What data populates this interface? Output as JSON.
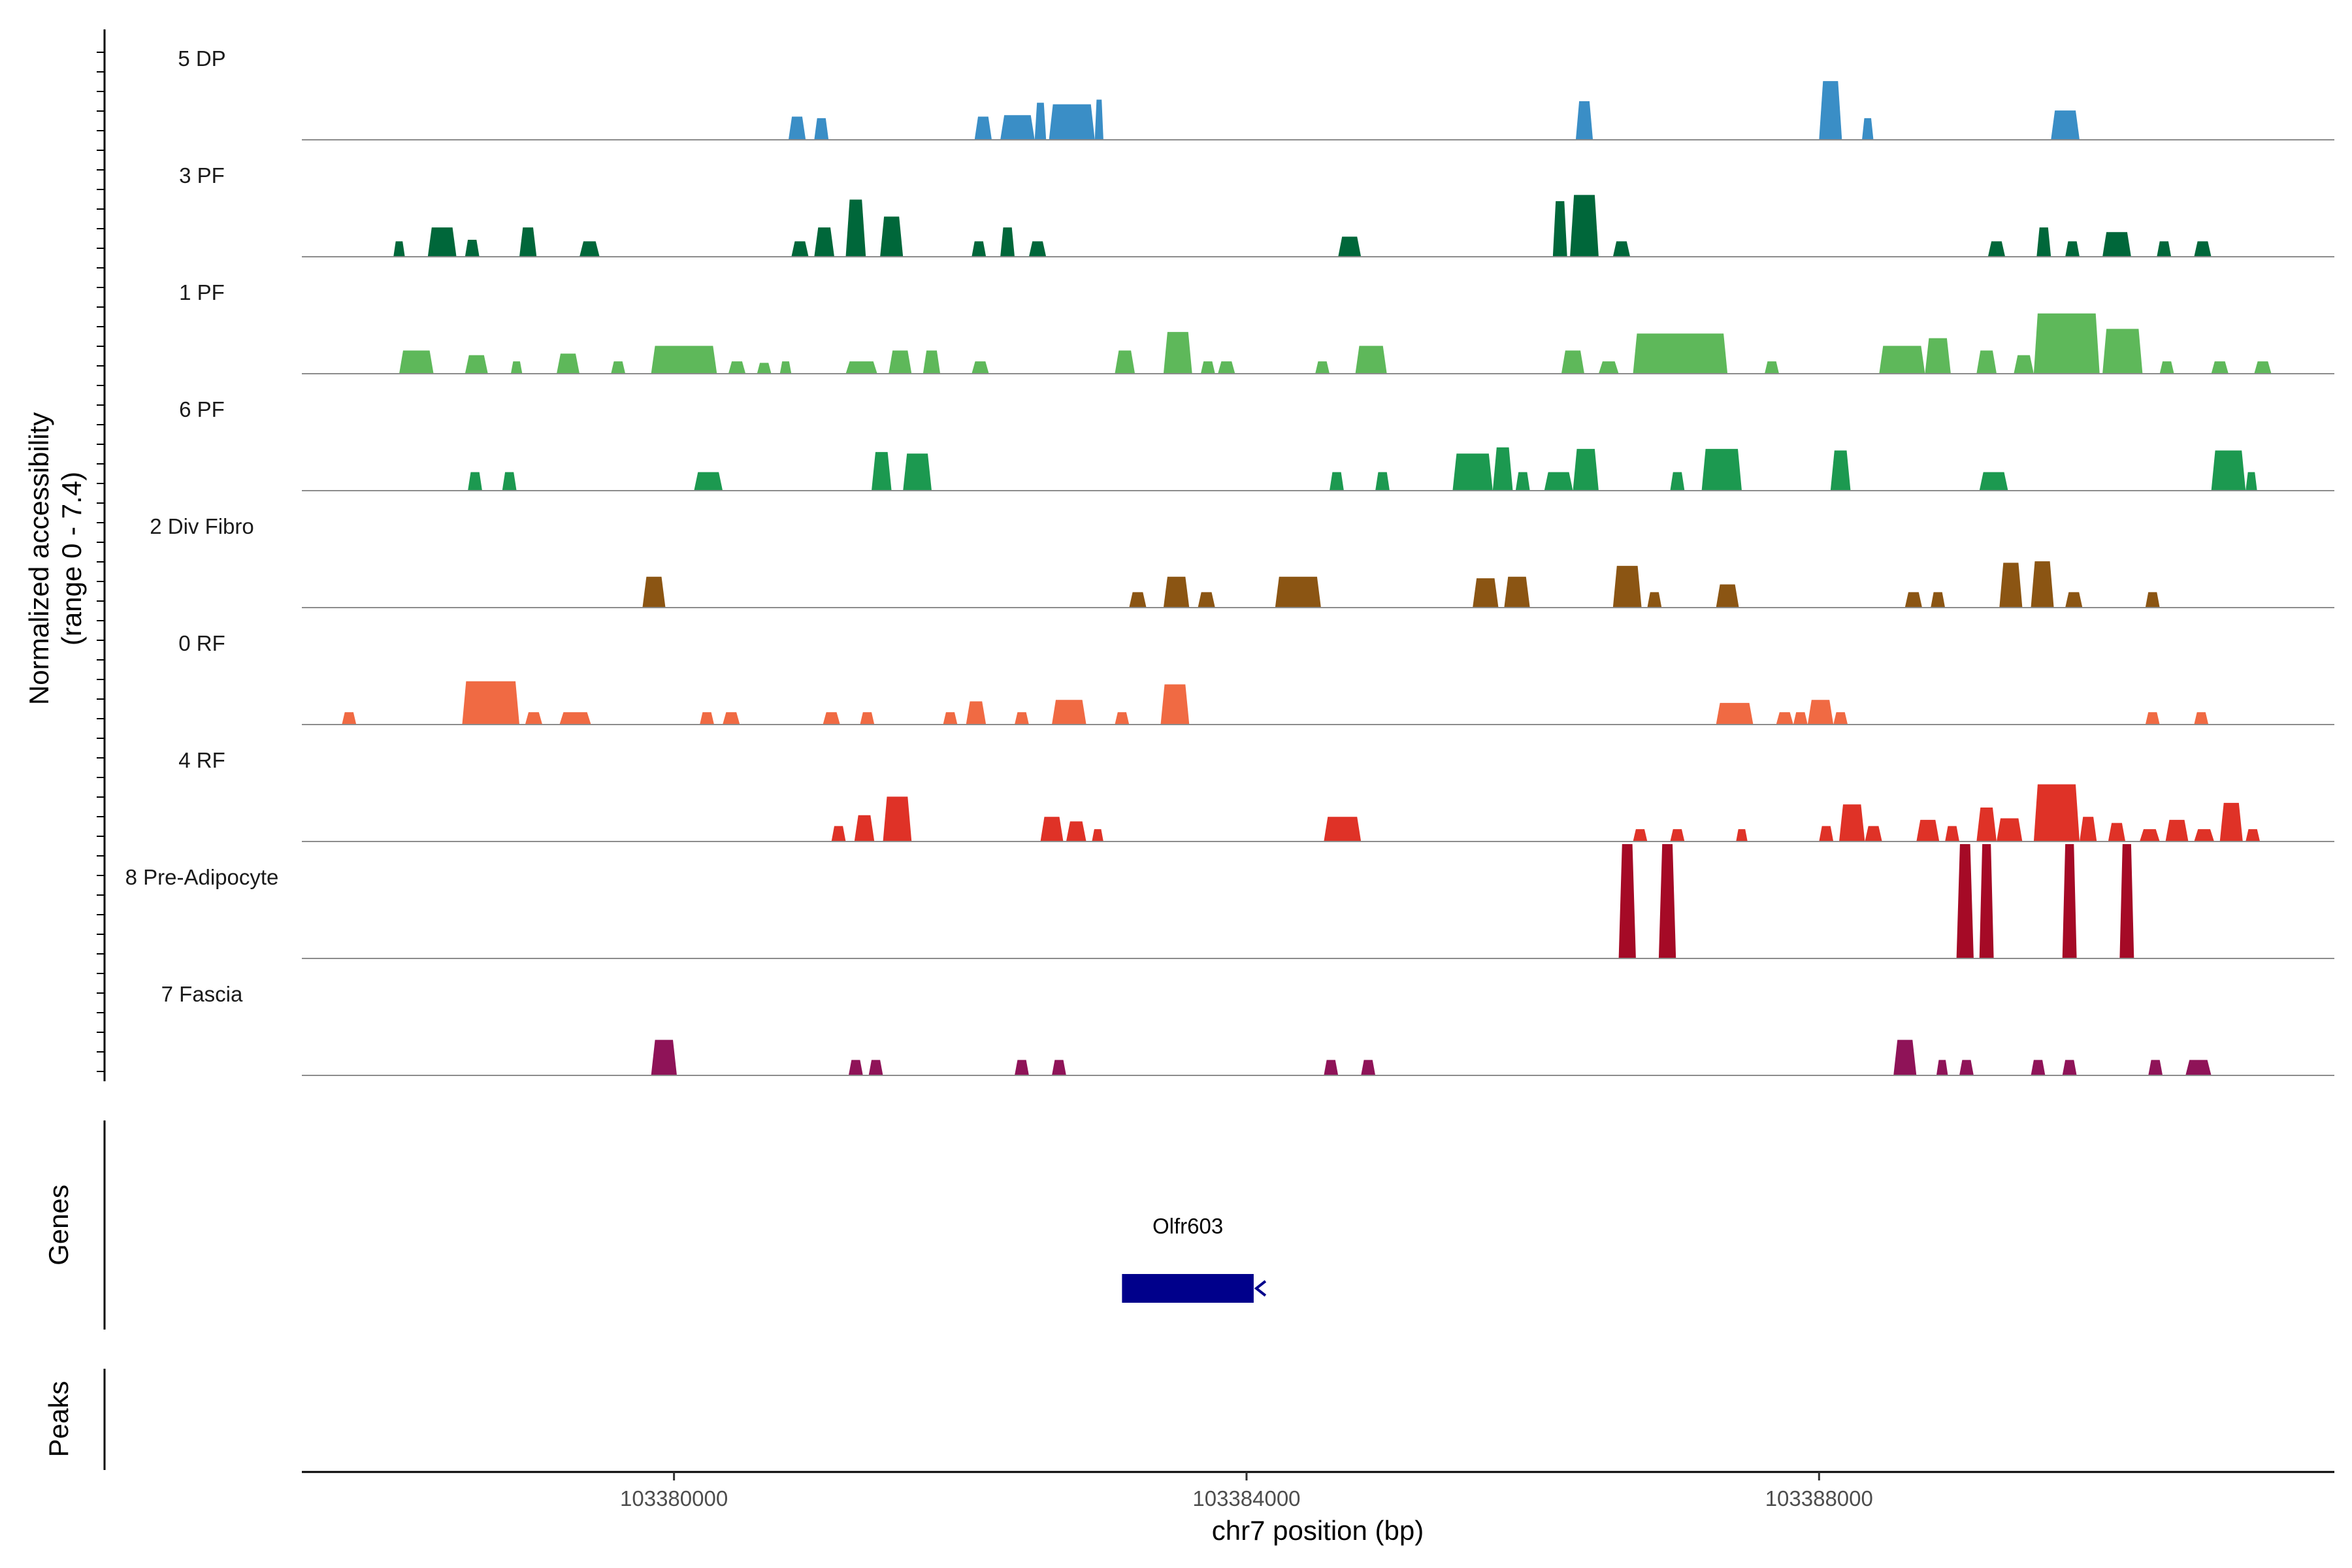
{
  "chart_data": {
    "type": "area",
    "title": "",
    "ylabel_line1": "Normalized accessibility",
    "ylabel_line2": "(range 0 - 7.4)",
    "ylim": [
      0,
      7.4
    ],
    "xlabel": "chr7 position (bp)",
    "xlim": [
      103377400,
      103391600
    ],
    "x_ticks": [
      103380000,
      103384000,
      103388000
    ],
    "x_tick_labels": [
      "103380000",
      "103384000",
      "103388000"
    ],
    "tracks": [
      {
        "name": "5 DP",
        "color": "#3a8ec6",
        "peaks": [
          [
            103380800,
            103380920,
            1.5
          ],
          [
            103380980,
            103381080,
            1.4
          ],
          [
            103382100,
            103382220,
            1.5
          ],
          [
            103382280,
            103382520,
            1.6
          ],
          [
            103382520,
            103382600,
            2.4
          ],
          [
            103382620,
            103382940,
            2.3
          ],
          [
            103382940,
            103383000,
            2.6
          ],
          [
            103386300,
            103386420,
            2.5
          ],
          [
            103388000,
            103388160,
            3.8
          ],
          [
            103388300,
            103388380,
            1.4
          ],
          [
            103389620,
            103389820,
            1.9
          ]
        ]
      },
      {
        "name": "3 PF",
        "color": "#00673a",
        "peaks": [
          [
            103378040,
            103378120,
            1.0
          ],
          [
            103378280,
            103378480,
            1.9
          ],
          [
            103378540,
            103378640,
            1.1
          ],
          [
            103378920,
            103379040,
            1.9
          ],
          [
            103379340,
            103379480,
            1.0
          ],
          [
            103380820,
            103380940,
            1.0
          ],
          [
            103380980,
            103381120,
            1.9
          ],
          [
            103381200,
            103381340,
            3.7
          ],
          [
            103381440,
            103381600,
            2.6
          ],
          [
            103382080,
            103382180,
            1.0
          ],
          [
            103382280,
            103382380,
            1.9
          ],
          [
            103382480,
            103382600,
            1.0
          ],
          [
            103384640,
            103384800,
            1.3
          ],
          [
            103386140,
            103386240,
            3.6
          ],
          [
            103386260,
            103386460,
            4.0
          ],
          [
            103386560,
            103386680,
            1.0
          ],
          [
            103389180,
            103389300,
            1.0
          ],
          [
            103389520,
            103389620,
            1.9
          ],
          [
            103389720,
            103389820,
            1.0
          ],
          [
            103389980,
            103390180,
            1.6
          ],
          [
            103390360,
            103390460,
            1.0
          ],
          [
            103390620,
            103390740,
            1.0
          ]
        ]
      },
      {
        "name": "1 PF",
        "color": "#5eb85a",
        "peaks": [
          [
            103378080,
            103378320,
            1.5
          ],
          [
            103378540,
            103378700,
            1.2
          ],
          [
            103378860,
            103378940,
            0.8
          ],
          [
            103379180,
            103379340,
            1.3
          ],
          [
            103379560,
            103379660,
            0.8
          ],
          [
            103379840,
            103380300,
            1.8
          ],
          [
            103380380,
            103380500,
            0.8
          ],
          [
            103380580,
            103380680,
            0.7
          ],
          [
            103380740,
            103380820,
            0.8
          ],
          [
            103381200,
            103381420,
            0.8
          ],
          [
            103381500,
            103381660,
            1.5
          ],
          [
            103381740,
            103381860,
            1.5
          ],
          [
            103382080,
            103382200,
            0.8
          ],
          [
            103383080,
            103383220,
            1.5
          ],
          [
            103383420,
            103383620,
            2.7
          ],
          [
            103383680,
            103383780,
            0.8
          ],
          [
            103383800,
            103383920,
            0.8
          ],
          [
            103384480,
            103384580,
            0.8
          ],
          [
            103384760,
            103384980,
            1.8
          ],
          [
            103386200,
            103386360,
            1.5
          ],
          [
            103386460,
            103386600,
            0.8
          ],
          [
            103386700,
            103387360,
            2.6
          ],
          [
            103387620,
            103387720,
            0.8
          ],
          [
            103388420,
            103388740,
            1.8
          ],
          [
            103388740,
            103388920,
            2.3
          ],
          [
            103389100,
            103389240,
            1.5
          ],
          [
            103389360,
            103389500,
            1.2
          ],
          [
            103389500,
            103389960,
            3.9
          ],
          [
            103389980,
            103390260,
            2.9
          ],
          [
            103390380,
            103390480,
            0.8
          ],
          [
            103390740,
            103390860,
            0.8
          ],
          [
            103391040,
            103391160,
            0.8
          ]
        ]
      },
      {
        "name": "6 PF",
        "color": "#1c9950",
        "peaks": [
          [
            103378560,
            103378660,
            1.2
          ],
          [
            103378800,
            103378900,
            1.2
          ],
          [
            103380140,
            103380340,
            1.2
          ],
          [
            103381380,
            103381520,
            2.5
          ],
          [
            103381600,
            103381800,
            2.4
          ],
          [
            103384580,
            103384680,
            1.2
          ],
          [
            103384900,
            103385000,
            1.2
          ],
          [
            103385440,
            103385720,
            2.4
          ],
          [
            103385720,
            103385860,
            2.8
          ],
          [
            103385880,
            103385980,
            1.2
          ],
          [
            103386080,
            103386280,
            1.2
          ],
          [
            103386280,
            103386460,
            2.7
          ],
          [
            103386960,
            103387060,
            1.2
          ],
          [
            103387180,
            103387460,
            2.7
          ],
          [
            103388080,
            103388220,
            2.6
          ],
          [
            103389120,
            103389320,
            1.2
          ],
          [
            103390740,
            103390980,
            2.6
          ],
          [
            103390980,
            103391060,
            1.2
          ]
        ]
      },
      {
        "name": "2 Div Fibro",
        "color": "#8b5513",
        "peaks": [
          [
            103379780,
            103379940,
            2.0
          ],
          [
            103383180,
            103383300,
            1.0
          ],
          [
            103383420,
            103383600,
            2.0
          ],
          [
            103383660,
            103383780,
            1.0
          ],
          [
            103384200,
            103384520,
            2.0
          ],
          [
            103385580,
            103385760,
            1.9
          ],
          [
            103385800,
            103385980,
            2.0
          ],
          [
            103386560,
            103386760,
            2.7
          ],
          [
            103386800,
            103386900,
            1.0
          ],
          [
            103387280,
            103387440,
            1.5
          ],
          [
            103388600,
            103388720,
            1.0
          ],
          [
            103388780,
            103388880,
            1.0
          ],
          [
            103389260,
            103389420,
            2.9
          ],
          [
            103389480,
            103389640,
            3.0
          ],
          [
            103389720,
            103389840,
            1.0
          ],
          [
            103390280,
            103390380,
            1.0
          ]
        ]
      },
      {
        "name": "0 RF",
        "color": "#f06a43",
        "peaks": [
          [
            103377680,
            103377780,
            0.8
          ],
          [
            103378520,
            103378920,
            2.8
          ],
          [
            103378960,
            103379080,
            0.8
          ],
          [
            103379200,
            103379420,
            0.8
          ],
          [
            103380180,
            103380280,
            0.8
          ],
          [
            103380340,
            103380460,
            0.8
          ],
          [
            103381040,
            103381160,
            0.8
          ],
          [
            103381300,
            103381400,
            0.8
          ],
          [
            103381880,
            103381980,
            0.8
          ],
          [
            103382040,
            103382180,
            1.5
          ],
          [
            103382380,
            103382480,
            0.8
          ],
          [
            103382640,
            103382880,
            1.6
          ],
          [
            103383080,
            103383180,
            0.8
          ],
          [
            103383400,
            103383600,
            2.6
          ],
          [
            103387280,
            103387540,
            1.4
          ],
          [
            103387700,
            103387820,
            0.8
          ],
          [
            103387820,
            103387920,
            0.8
          ],
          [
            103387920,
            103388100,
            1.6
          ],
          [
            103388100,
            103388200,
            0.8
          ],
          [
            103390280,
            103390380,
            0.8
          ],
          [
            103390620,
            103390720,
            0.8
          ]
        ]
      },
      {
        "name": "4 RF",
        "color": "#df3227",
        "peaks": [
          [
            103381100,
            103381200,
            1.0
          ],
          [
            103381260,
            103381400,
            1.7
          ],
          [
            103381460,
            103381660,
            2.9
          ],
          [
            103382560,
            103382720,
            1.6
          ],
          [
            103382740,
            103382880,
            1.3
          ],
          [
            103382920,
            103383000,
            0.8
          ],
          [
            103384540,
            103384800,
            1.6
          ],
          [
            103386700,
            103386800,
            0.8
          ],
          [
            103386960,
            103387060,
            0.8
          ],
          [
            103387420,
            103387500,
            0.8
          ],
          [
            103388000,
            103388100,
            1.0
          ],
          [
            103388140,
            103388320,
            2.4
          ],
          [
            103388320,
            103388440,
            1.0
          ],
          [
            103388680,
            103388840,
            1.4
          ],
          [
            103388880,
            103388980,
            1.0
          ],
          [
            103389100,
            103389240,
            2.2
          ],
          [
            103389240,
            103389420,
            1.5
          ],
          [
            103389500,
            103389820,
            3.7
          ],
          [
            103389820,
            103389940,
            1.6
          ],
          [
            103390020,
            103390140,
            1.2
          ],
          [
            103390240,
            103390380,
            0.8
          ],
          [
            103390420,
            103390580,
            1.4
          ],
          [
            103390620,
            103390760,
            0.8
          ],
          [
            103390800,
            103390960,
            2.5
          ],
          [
            103390980,
            103391080,
            0.8
          ]
        ]
      },
      {
        "name": "8 Pre-Adipocyte",
        "color": "#a50a26",
        "peaks": [
          [
            103386600,
            103386720,
            7.4
          ],
          [
            103386880,
            103387000,
            7.4
          ],
          [
            103388960,
            103389080,
            7.4
          ],
          [
            103389120,
            103389220,
            7.4
          ],
          [
            103389700,
            103389800,
            7.4
          ],
          [
            103390100,
            103390200,
            7.4
          ]
        ]
      },
      {
        "name": "7 Fascia",
        "color": "#8f1358",
        "peaks": [
          [
            103379840,
            103380020,
            2.3
          ],
          [
            103381220,
            103381320,
            1.0
          ],
          [
            103381360,
            103381460,
            1.0
          ],
          [
            103382380,
            103382480,
            1.0
          ],
          [
            103382640,
            103382740,
            1.0
          ],
          [
            103384540,
            103384640,
            1.0
          ],
          [
            103384800,
            103384900,
            1.0
          ],
          [
            103388520,
            103388680,
            2.3
          ],
          [
            103388820,
            103388900,
            1.0
          ],
          [
            103388980,
            103389080,
            1.0
          ],
          [
            103389480,
            103389580,
            1.0
          ],
          [
            103389700,
            103389800,
            1.0
          ],
          [
            103390300,
            103390400,
            1.0
          ],
          [
            103390560,
            103390740,
            1.0
          ]
        ]
      }
    ],
    "genes": {
      "label": "Genes",
      "items": [
        {
          "name": "Olfr603",
          "start": 103383130,
          "end": 103384050,
          "strand": "-",
          "color": "#00008b"
        }
      ]
    },
    "peaks_track": {
      "label": "Peaks",
      "items": []
    }
  }
}
